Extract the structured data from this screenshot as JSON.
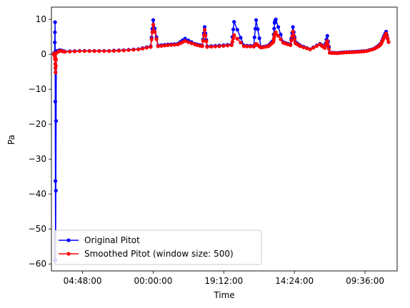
{
  "chart_data": {
    "type": "line",
    "xlabel": "Time",
    "ylabel": "Pa",
    "x_tick_labels": [
      "09:36:00",
      "14:24:00",
      "19:12:00",
      "00:00:00",
      "04:48:00"
    ],
    "x_range": [
      "06:55:00",
      "07:25:00 (next day)"
    ],
    "ylim": [
      -62,
      13.5
    ],
    "y_ticks": [
      10,
      0,
      -10,
      -20,
      -30,
      -40,
      -50,
      -60
    ],
    "grid": false,
    "legend_position": "lower-left",
    "series": [
      {
        "name": "Original Pitot",
        "color": "#0000ff",
        "marker": "circle",
        "points": [
          [
            "08:00:00",
            3.5
          ],
          [
            "08:10:00",
            6.5
          ],
          [
            "08:20:00",
            5.0
          ],
          [
            "08:30:00",
            3.2
          ],
          [
            "08:40:00",
            2.5
          ],
          [
            "09:00:00",
            1.6
          ],
          [
            "09:30:00",
            1.0
          ],
          [
            "10:00:00",
            0.8
          ],
          [
            "10:30:00",
            0.7
          ],
          [
            "11:00:00",
            0.6
          ],
          [
            "11:30:00",
            0.4
          ],
          [
            "12:00:00",
            0.5
          ],
          [
            "12:10:00",
            5.3
          ],
          [
            "12:20:00",
            2.0
          ],
          [
            "12:40:00",
            3.0
          ],
          [
            "13:20:00",
            1.5
          ],
          [
            "14:00:00",
            2.5
          ],
          [
            "14:20:00",
            3.5
          ],
          [
            "14:30:00",
            7.8
          ],
          [
            "14:40:00",
            2.8
          ],
          [
            "15:10:00",
            3.5
          ],
          [
            "15:40:00",
            10.0
          ],
          [
            "15:45:00",
            9.0
          ],
          [
            "15:50:00",
            4.0
          ],
          [
            "16:10:00",
            2.5
          ],
          [
            "16:40:00",
            2.0
          ],
          [
            "17:00:00",
            9.8
          ],
          [
            "17:10:00",
            2.4
          ],
          [
            "17:50:00",
            2.5
          ],
          [
            "18:30:00",
            9.3
          ],
          [
            "18:40:00",
            2.8
          ],
          [
            "19:30:00",
            2.5
          ],
          [
            "20:20:00",
            2.3
          ],
          [
            "20:30:00",
            7.8
          ],
          [
            "20:40:00",
            2.5
          ],
          [
            "21:10:00",
            3.0
          ],
          [
            "21:50:00",
            4.5
          ],
          [
            "22:20:00",
            3.0
          ],
          [
            "23:00:00",
            2.8
          ],
          [
            "23:40:00",
            2.5
          ],
          [
            "00:00:00",
            9.8
          ],
          [
            "00:10:00",
            2.3
          ],
          [
            "01:00:00",
            1.5
          ],
          [
            "02:00:00",
            1.2
          ],
          [
            "03:00:00",
            1.0
          ],
          [
            "04:00:00",
            1.0
          ],
          [
            "05:00:00",
            1.0
          ],
          [
            "06:00:00",
            0.8
          ],
          [
            "06:20:00",
            1.2
          ],
          [
            "06:35:00",
            0.9
          ],
          [
            "06:38:00",
            -59.0
          ],
          [
            "06:40:00",
            9.2
          ],
          [
            "06:42:00",
            0.5
          ],
          [
            "06:45:00",
            0.2
          ]
        ]
      },
      {
        "name": "Smoothed Pitot (window size: 500)",
        "color": "#ff0000",
        "marker": "circle",
        "points": [
          [
            "08:00:00",
            3.5
          ],
          [
            "08:10:00",
            6.0
          ],
          [
            "08:20:00",
            4.6
          ],
          [
            "08:30:00",
            3.0
          ],
          [
            "08:40:00",
            2.3
          ],
          [
            "09:00:00",
            1.5
          ],
          [
            "09:30:00",
            0.9
          ],
          [
            "10:00:00",
            0.7
          ],
          [
            "10:30:00",
            0.6
          ],
          [
            "11:00:00",
            0.5
          ],
          [
            "11:30:00",
            0.3
          ],
          [
            "12:00:00",
            0.4
          ],
          [
            "12:10:00",
            3.8
          ],
          [
            "12:20:00",
            1.8
          ],
          [
            "12:40:00",
            2.8
          ],
          [
            "13:20:00",
            1.4
          ],
          [
            "14:00:00",
            2.3
          ],
          [
            "14:20:00",
            3.2
          ],
          [
            "14:30:00",
            6.5
          ],
          [
            "14:40:00",
            2.6
          ],
          [
            "15:10:00",
            3.3
          ],
          [
            "15:40:00",
            6.3
          ],
          [
            "15:45:00",
            5.5
          ],
          [
            "15:50:00",
            3.5
          ],
          [
            "16:10:00",
            2.3
          ],
          [
            "16:40:00",
            1.9
          ],
          [
            "17:00:00",
            3.0
          ],
          [
            "17:10:00",
            2.2
          ],
          [
            "17:50:00",
            2.3
          ],
          [
            "18:30:00",
            5.5
          ],
          [
            "18:40:00",
            2.6
          ],
          [
            "19:30:00",
            2.3
          ],
          [
            "20:20:00",
            2.1
          ],
          [
            "20:30:00",
            7.0
          ],
          [
            "20:40:00",
            2.3
          ],
          [
            "21:10:00",
            2.8
          ],
          [
            "21:50:00",
            3.8
          ],
          [
            "22:20:00",
            2.8
          ],
          [
            "23:00:00",
            2.6
          ],
          [
            "23:40:00",
            2.3
          ],
          [
            "00:00:00",
            8.5
          ],
          [
            "00:10:00",
            2.1
          ],
          [
            "01:00:00",
            1.4
          ],
          [
            "02:00:00",
            1.1
          ],
          [
            "03:00:00",
            0.9
          ],
          [
            "04:00:00",
            0.9
          ],
          [
            "05:00:00",
            0.9
          ],
          [
            "06:00:00",
            0.7
          ],
          [
            "06:20:00",
            1.0
          ],
          [
            "06:35:00",
            0.4
          ],
          [
            "06:38:00",
            -5.2
          ],
          [
            "06:40:00",
            -1.5
          ],
          [
            "06:42:00",
            0.3
          ],
          [
            "06:45:00",
            0.0
          ]
        ]
      }
    ]
  }
}
